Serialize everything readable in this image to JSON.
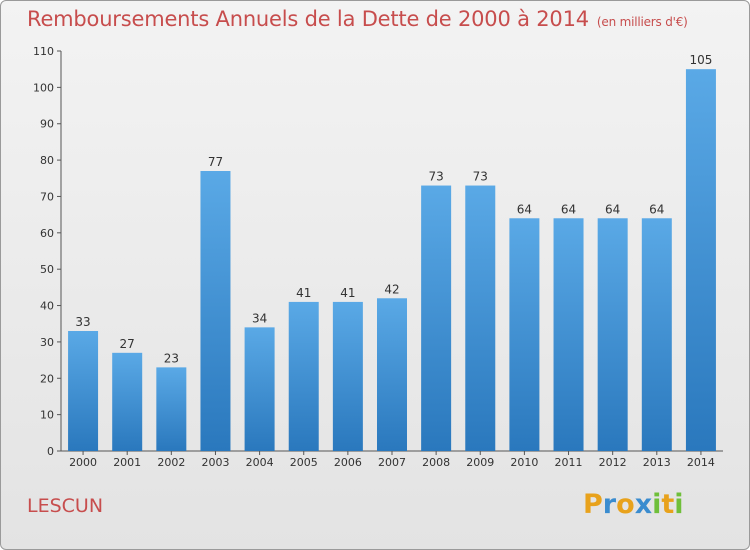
{
  "title": "Remboursements Annuels de la Dette de 2000 à 2014",
  "unit_note": "(en milliers d'€)",
  "commune": "LESCUN",
  "brand": {
    "letters": [
      "P",
      "r",
      "o",
      "x",
      "i",
      "t",
      "i"
    ],
    "colors": [
      "#e8a21c",
      "#3a8ccf",
      "#e8a21c",
      "#3a8ccf",
      "#6fbf3a",
      "#e8a21c",
      "#6fbf3a"
    ]
  },
  "colors": {
    "bar_light": "#5aa9e6",
    "bar_dark": "#2a78bd",
    "title": "#c74d4d"
  },
  "chart_data": {
    "type": "bar",
    "title": "Remboursements Annuels de la Dette de 2000 à 2014",
    "ylabel": "en milliers d'€",
    "xlabel": "",
    "categories": [
      "2000",
      "2001",
      "2002",
      "2003",
      "2004",
      "2005",
      "2006",
      "2007",
      "2008",
      "2009",
      "2010",
      "2011",
      "2012",
      "2013",
      "2014"
    ],
    "values": [
      33,
      27,
      23,
      77,
      34,
      41,
      41,
      42,
      73,
      73,
      64,
      64,
      64,
      64,
      105
    ],
    "ylim": [
      0,
      110
    ],
    "yticks": [
      0,
      10,
      20,
      30,
      40,
      50,
      60,
      70,
      80,
      90,
      100,
      110
    ],
    "grid": false
  }
}
